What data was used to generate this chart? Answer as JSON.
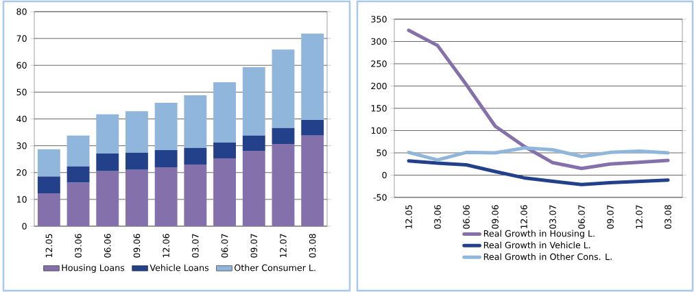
{
  "chart_data": [
    {
      "type": "bar",
      "stacked": true,
      "categories": [
        "12.05",
        "03.06",
        "06.06",
        "09.06",
        "12.06",
        "03.07",
        "06.07",
        "09.07",
        "12.07",
        "03.08"
      ],
      "ylim": [
        0,
        80
      ],
      "yticks": [
        0,
        10,
        20,
        30,
        40,
        50,
        60,
        70,
        80
      ],
      "grid": "y",
      "legend": "bottom",
      "series": [
        {
          "name": "Housing Loans",
          "color": "#8470aa",
          "values": [
            12.3,
            16.2,
            20.5,
            21.0,
            22.0,
            23.0,
            25.3,
            28.1,
            30.7,
            33.8
          ]
        },
        {
          "name": "Vehicle Loans",
          "color": "#23418a",
          "values": [
            6.2,
            6.1,
            6.6,
            6.4,
            6.4,
            6.2,
            5.9,
            5.7,
            5.9,
            5.8
          ]
        },
        {
          "name": "Other Consumer L.",
          "color": "#91b6dc",
          "values": [
            10.2,
            11.5,
            14.6,
            15.5,
            17.6,
            19.6,
            22.5,
            25.5,
            29.3,
            32.2
          ]
        }
      ]
    },
    {
      "type": "line",
      "categories": [
        "12.05",
        "03.06",
        "06.06",
        "09.06",
        "12.06",
        "03.07",
        "06.07",
        "09.07",
        "12.07",
        "03.08"
      ],
      "ylim": [
        -50,
        350
      ],
      "yticks": [
        -50,
        0,
        50,
        100,
        150,
        200,
        250,
        300,
        350
      ],
      "grid": "y",
      "legend": "bottom",
      "series": [
        {
          "name": "Real Growth in Housing L.",
          "color": "#8470aa",
          "values": [
            325,
            291,
            203,
            110,
            65,
            28,
            15,
            25,
            29,
            33
          ]
        },
        {
          "name": "Real Growth in Vehicle L.",
          "color": "#23418a",
          "values": [
            32,
            27,
            23,
            8,
            -6,
            -14,
            -21,
            -17,
            -14,
            -11
          ]
        },
        {
          "name": "Real Growth in Other Cons. L.",
          "color": "#91b6dc",
          "values": [
            51,
            34,
            51,
            50,
            61,
            57,
            42,
            51,
            54,
            50
          ]
        }
      ]
    }
  ]
}
